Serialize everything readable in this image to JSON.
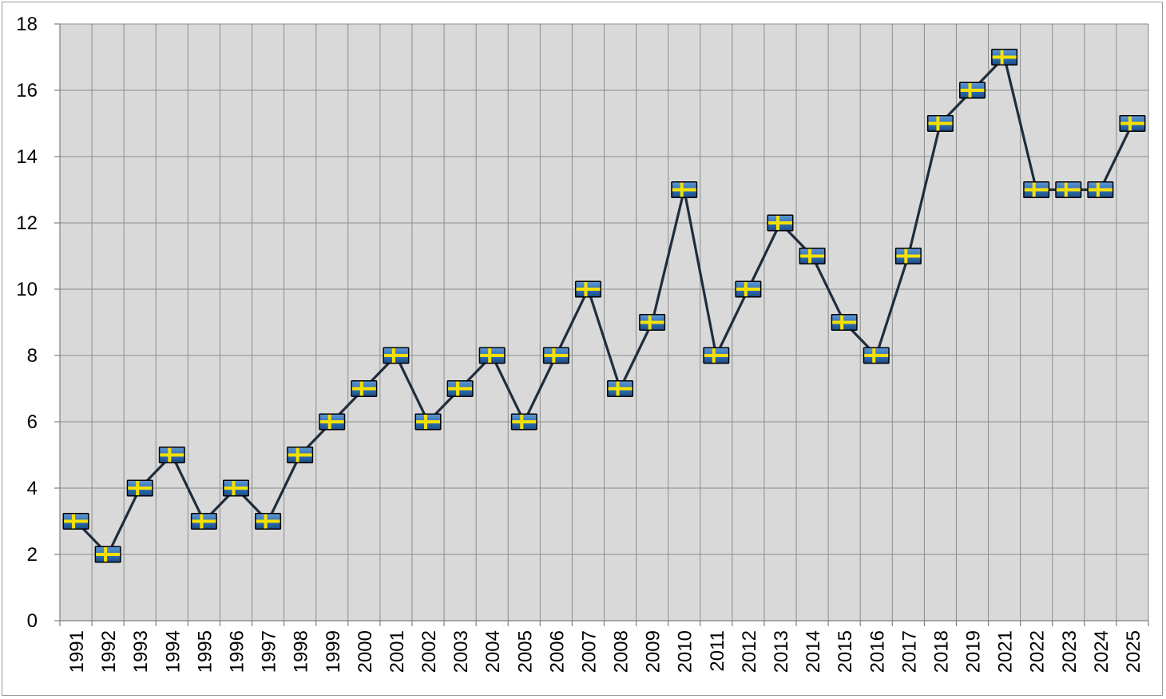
{
  "chart_data": {
    "type": "line",
    "title": "",
    "xlabel": "",
    "ylabel": "",
    "categories": [
      "1991",
      "1992",
      "1993",
      "1994",
      "1995",
      "1996",
      "1997",
      "1998",
      "1999",
      "2000",
      "2001",
      "2002",
      "2003",
      "2004",
      "2005",
      "2006",
      "2007",
      "2008",
      "2009",
      "2010",
      "2011",
      "2012",
      "2013",
      "2014",
      "2015",
      "2016",
      "2017",
      "2018",
      "2019",
      "2021",
      "2022",
      "2023",
      "2024",
      "2025"
    ],
    "series": [
      {
        "values": [
          3,
          2,
          4,
          5,
          3,
          4,
          3,
          5,
          6,
          7,
          8,
          6,
          7,
          8,
          6,
          8,
          10,
          7,
          9,
          13,
          8,
          10,
          12,
          11,
          9,
          8,
          11,
          15,
          16,
          17,
          13,
          13,
          13,
          15
        ],
        "line_color": "#1f2d3d",
        "marker": "flag-sweden-icon"
      }
    ],
    "ylim": [
      0,
      18
    ],
    "yticks": [
      0,
      2,
      4,
      6,
      8,
      10,
      12,
      14,
      16,
      18
    ],
    "grid": true,
    "legend": "none",
    "colors": {
      "plot_background": "#d9d9d9",
      "grid": "#8c8c8c",
      "flag_blue": "#2f6fb3",
      "flag_yellow": "#f5e100"
    }
  }
}
